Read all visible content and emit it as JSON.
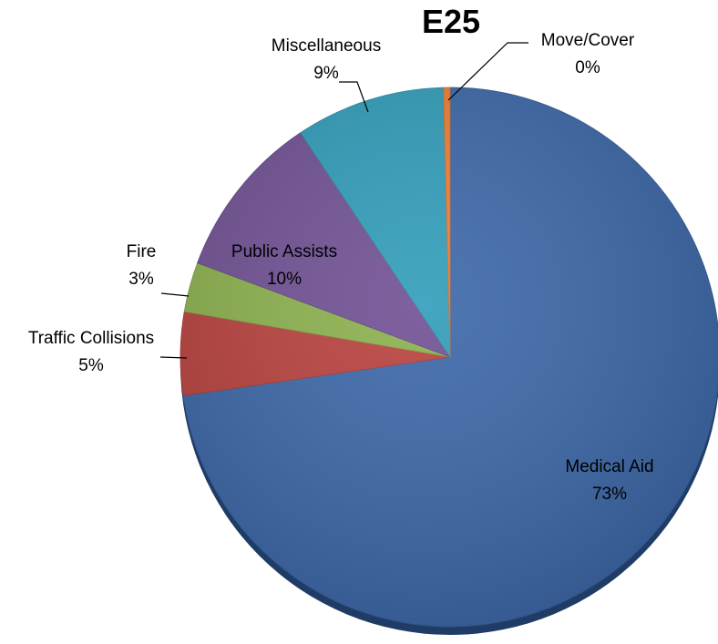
{
  "chart_data": {
    "type": "pie",
    "title": "E25",
    "slices": [
      {
        "label": "Medical Aid",
        "percent_label": "73%",
        "value": 73,
        "color": "#3a66a8"
      },
      {
        "label": "Traffic Collisions",
        "percent_label": "5%",
        "value": 5,
        "color": "#b8403c"
      },
      {
        "label": "Fire",
        "percent_label": "3%",
        "value": 3,
        "color": "#8bb04c"
      },
      {
        "label": "Public Assists",
        "percent_label": "10%",
        "value": 10,
        "color": "#6f4f93"
      },
      {
        "label": "Miscellaneous",
        "percent_label": "9%",
        "value": 9,
        "color": "#2f9cb9"
      },
      {
        "label": "Move/Cover",
        "percent_label": "0%",
        "value": 0.4,
        "color": "#ed7d31"
      }
    ],
    "start": "top (12 o'clock)",
    "direction": "clockwise",
    "style": "3d-shadow"
  }
}
